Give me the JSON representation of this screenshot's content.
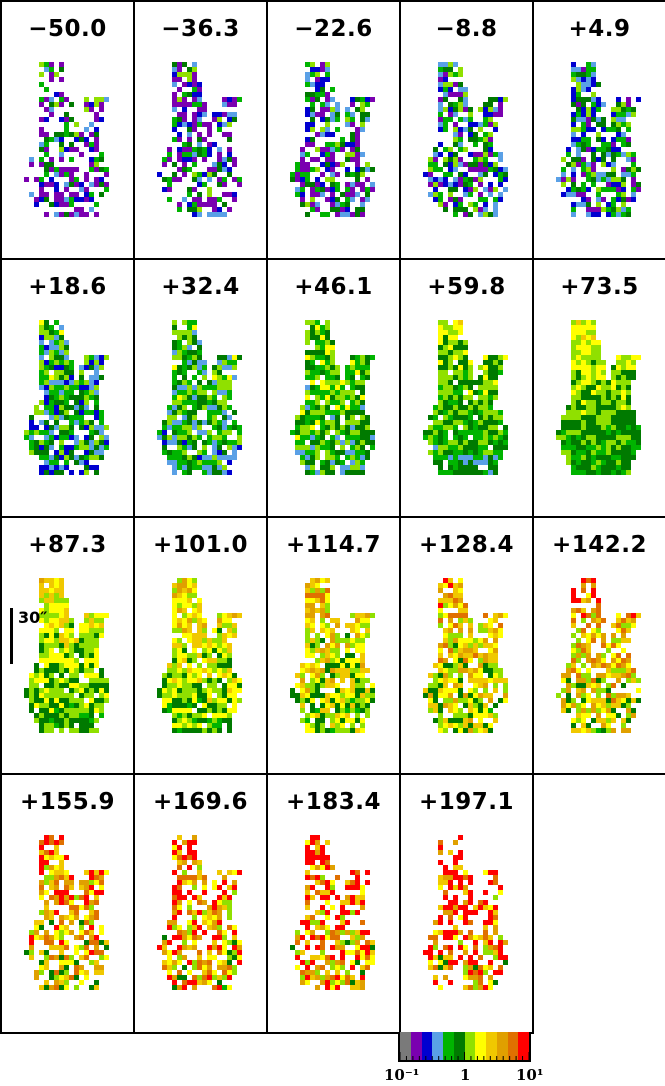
{
  "panels": [
    {
      "label": "−50.0",
      "stage": 0
    },
    {
      "label": "−36.3",
      "stage": 1
    },
    {
      "label": "−22.6",
      "stage": 2
    },
    {
      "label": "−8.8",
      "stage": 3
    },
    {
      "label": "+4.9",
      "stage": 4
    },
    {
      "label": "+18.6",
      "stage": 5
    },
    {
      "label": "+32.4",
      "stage": 6
    },
    {
      "label": "+46.1",
      "stage": 7
    },
    {
      "label": "+59.8",
      "stage": 8
    },
    {
      "label": "+73.5",
      "stage": 9
    },
    {
      "label": "+87.3",
      "stage": 10
    },
    {
      "label": "+101.0",
      "stage": 11
    },
    {
      "label": "+114.7",
      "stage": 12
    },
    {
      "label": "+128.4",
      "stage": 13
    },
    {
      "label": "+142.2",
      "stage": 14
    },
    {
      "label": "+155.9",
      "stage": 15
    },
    {
      "label": "+169.6",
      "stage": 16
    },
    {
      "label": "+183.4",
      "stage": 17
    },
    {
      "label": "+197.1",
      "stage": 18
    }
  ],
  "scale_bar": {
    "label": "30″"
  },
  "colorbar": {
    "colors": [
      "#7a7a7a",
      "#7a00b0",
      "#0000d0",
      "#5aa0e6",
      "#00b400",
      "#007a00",
      "#90e000",
      "#ffff00",
      "#f0c800",
      "#e0a000",
      "#e07000",
      "#ff0000"
    ],
    "label_min": "10⁻¹",
    "label_mid": "1",
    "label_max": "10¹"
  }
}
